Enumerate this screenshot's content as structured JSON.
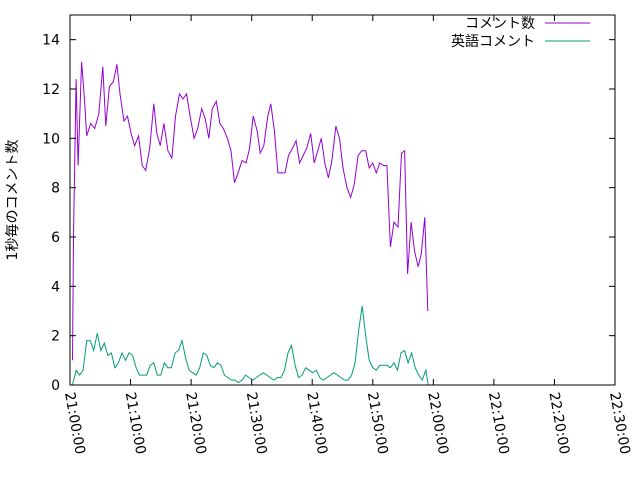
{
  "chart_data": {
    "type": "line",
    "title": "",
    "xlabel": "",
    "ylabel": "1秒毎のコメント数",
    "xlim": [
      "21:00:00",
      "22:30:00"
    ],
    "ylim": [
      0,
      15
    ],
    "grid": false,
    "legend_position": "top-right",
    "x_tick_labels": [
      "21:00:00",
      "21:10:00",
      "21:20:00",
      "21:30:00",
      "21:40:00",
      "21:50:00",
      "22:00:00",
      "22:10:00",
      "22:20:00",
      "22:30:00"
    ],
    "y_tick_labels": [
      "0",
      "2",
      "4",
      "6",
      "8",
      "10",
      "12",
      "14"
    ],
    "series": [
      {
        "name": "コメント数",
        "color": "#9400d3",
        "points": [
          [
            "21:00:25",
            1.0
          ],
          [
            "21:00:35",
            6.0
          ],
          [
            "21:01:00",
            12.4
          ],
          [
            "21:01:20",
            8.9
          ],
          [
            "21:01:55",
            13.1
          ],
          [
            "21:02:20",
            11.8
          ],
          [
            "21:02:45",
            10.1
          ],
          [
            "21:03:25",
            10.6
          ],
          [
            "21:04:05",
            10.4
          ],
          [
            "21:04:45",
            11.0
          ],
          [
            "21:05:25",
            12.9
          ],
          [
            "21:05:55",
            10.5
          ],
          [
            "21:06:30",
            12.1
          ],
          [
            "21:07:10",
            12.3
          ],
          [
            "21:07:45",
            13.0
          ],
          [
            "21:08:15",
            11.8
          ],
          [
            "21:08:55",
            10.7
          ],
          [
            "21:09:30",
            10.9
          ],
          [
            "21:10:05",
            10.2
          ],
          [
            "21:10:40",
            9.7
          ],
          [
            "21:11:20",
            10.1
          ],
          [
            "21:11:55",
            8.9
          ],
          [
            "21:12:30",
            8.7
          ],
          [
            "21:13:10",
            9.6
          ],
          [
            "21:13:50",
            11.4
          ],
          [
            "21:14:20",
            10.2
          ],
          [
            "21:14:55",
            9.7
          ],
          [
            "21:15:30",
            10.6
          ],
          [
            "21:16:10",
            9.5
          ],
          [
            "21:16:50",
            9.2
          ],
          [
            "21:17:25",
            10.9
          ],
          [
            "21:18:05",
            11.8
          ],
          [
            "21:18:40",
            11.6
          ],
          [
            "21:19:15",
            11.8
          ],
          [
            "21:19:50",
            10.9
          ],
          [
            "21:20:30",
            10.0
          ],
          [
            "21:21:05",
            10.4
          ],
          [
            "21:21:45",
            11.2
          ],
          [
            "21:22:20",
            10.8
          ],
          [
            "21:22:55",
            10.0
          ],
          [
            "21:23:30",
            11.2
          ],
          [
            "21:24:10",
            11.5
          ],
          [
            "21:24:45",
            10.6
          ],
          [
            "21:25:20",
            10.4
          ],
          [
            "21:26:00",
            10.0
          ],
          [
            "21:26:35",
            9.5
          ],
          [
            "21:27:10",
            8.2
          ],
          [
            "21:27:45",
            8.6
          ],
          [
            "21:28:25",
            9.1
          ],
          [
            "21:29:05",
            9.0
          ],
          [
            "21:29:40",
            9.6
          ],
          [
            "21:30:15",
            10.9
          ],
          [
            "21:30:55",
            10.3
          ],
          [
            "21:31:25",
            9.4
          ],
          [
            "21:32:00",
            9.7
          ],
          [
            "21:32:40",
            10.9
          ],
          [
            "21:33:10",
            11.4
          ],
          [
            "21:33:45",
            10.3
          ],
          [
            "21:34:20",
            8.6
          ],
          [
            "21:34:55",
            8.6
          ],
          [
            "21:35:30",
            8.6
          ],
          [
            "21:36:05",
            9.3
          ],
          [
            "21:36:45",
            9.6
          ],
          [
            "21:37:20",
            9.9
          ],
          [
            "21:37:55",
            9.0
          ],
          [
            "21:38:30",
            9.3
          ],
          [
            "21:39:05",
            9.6
          ],
          [
            "21:39:45",
            10.2
          ],
          [
            "21:40:20",
            9.0
          ],
          [
            "21:40:55",
            9.5
          ],
          [
            "21:41:30",
            10.0
          ],
          [
            "21:42:05",
            9.0
          ],
          [
            "21:42:40",
            8.4
          ],
          [
            "21:43:15",
            9.1
          ],
          [
            "21:43:55",
            10.5
          ],
          [
            "21:44:30",
            10.0
          ],
          [
            "21:45:05",
            8.8
          ],
          [
            "21:45:45",
            8.0
          ],
          [
            "21:46:20",
            7.6
          ],
          [
            "21:46:55",
            8.1
          ],
          [
            "21:47:35",
            9.3
          ],
          [
            "21:48:10",
            9.5
          ],
          [
            "21:48:50",
            9.5
          ],
          [
            "21:49:25",
            8.8
          ],
          [
            "21:50:00",
            9.0
          ],
          [
            "21:50:35",
            8.6
          ],
          [
            "21:51:10",
            9.0
          ],
          [
            "21:51:45",
            8.9
          ],
          [
            "21:52:20",
            8.9
          ],
          [
            "21:52:55",
            5.6
          ],
          [
            "21:53:30",
            6.6
          ],
          [
            "21:54:10",
            6.4
          ],
          [
            "21:54:45",
            9.4
          ],
          [
            "21:55:15",
            9.5
          ],
          [
            "21:55:45",
            4.5
          ],
          [
            "21:56:20",
            6.6
          ],
          [
            "21:56:55",
            5.4
          ],
          [
            "21:57:30",
            4.8
          ],
          [
            "21:58:00",
            5.3
          ],
          [
            "21:58:35",
            6.8
          ],
          [
            "21:59:05",
            3.0
          ]
        ]
      },
      {
        "name": "英語コメント",
        "color": "#009e73",
        "points": [
          [
            "21:00:25",
            0.0
          ],
          [
            "21:01:00",
            0.6
          ],
          [
            "21:01:35",
            0.4
          ],
          [
            "21:02:10",
            0.6
          ],
          [
            "21:02:45",
            1.8
          ],
          [
            "21:03:20",
            1.8
          ],
          [
            "21:03:55",
            1.4
          ],
          [
            "21:04:30",
            2.1
          ],
          [
            "21:05:05",
            1.4
          ],
          [
            "21:05:40",
            1.7
          ],
          [
            "21:06:15",
            1.2
          ],
          [
            "21:06:50",
            1.3
          ],
          [
            "21:07:25",
            0.7
          ],
          [
            "21:08:00",
            0.9
          ],
          [
            "21:08:35",
            1.3
          ],
          [
            "21:09:10",
            1.0
          ],
          [
            "21:09:45",
            1.3
          ],
          [
            "21:10:20",
            1.2
          ],
          [
            "21:10:55",
            0.7
          ],
          [
            "21:11:30",
            0.4
          ],
          [
            "21:12:05",
            0.4
          ],
          [
            "21:12:40",
            0.4
          ],
          [
            "21:13:15",
            0.8
          ],
          [
            "21:13:50",
            0.9
          ],
          [
            "21:14:25",
            0.4
          ],
          [
            "21:15:00",
            0.4
          ],
          [
            "21:15:35",
            0.9
          ],
          [
            "21:16:10",
            0.7
          ],
          [
            "21:16:45",
            0.7
          ],
          [
            "21:17:20",
            1.3
          ],
          [
            "21:17:55",
            1.4
          ],
          [
            "21:18:30",
            1.8
          ],
          [
            "21:19:05",
            1.1
          ],
          [
            "21:19:40",
            0.6
          ],
          [
            "21:20:15",
            0.5
          ],
          [
            "21:20:50",
            0.4
          ],
          [
            "21:21:25",
            0.7
          ],
          [
            "21:22:00",
            1.3
          ],
          [
            "21:22:35",
            1.2
          ],
          [
            "21:23:10",
            0.8
          ],
          [
            "21:23:45",
            0.7
          ],
          [
            "21:24:20",
            0.9
          ],
          [
            "21:24:55",
            0.8
          ],
          [
            "21:25:30",
            0.4
          ],
          [
            "21:26:05",
            0.3
          ],
          [
            "21:26:40",
            0.2
          ],
          [
            "21:27:15",
            0.2
          ],
          [
            "21:27:50",
            0.1
          ],
          [
            "21:28:25",
            0.2
          ],
          [
            "21:29:00",
            0.4
          ],
          [
            "21:29:35",
            0.3
          ],
          [
            "21:30:10",
            0.2
          ],
          [
            "21:30:45",
            0.3
          ],
          [
            "21:31:20",
            0.4
          ],
          [
            "21:31:55",
            0.5
          ],
          [
            "21:32:30",
            0.4
          ],
          [
            "21:33:05",
            0.3
          ],
          [
            "21:33:40",
            0.2
          ],
          [
            "21:34:15",
            0.3
          ],
          [
            "21:34:50",
            0.3
          ],
          [
            "21:35:25",
            0.6
          ],
          [
            "21:36:00",
            1.3
          ],
          [
            "21:36:35",
            1.6
          ],
          [
            "21:37:10",
            0.8
          ],
          [
            "21:37:45",
            0.3
          ],
          [
            "21:38:20",
            0.4
          ],
          [
            "21:38:55",
            0.7
          ],
          [
            "21:39:30",
            0.6
          ],
          [
            "21:40:05",
            0.5
          ],
          [
            "21:40:40",
            0.6
          ],
          [
            "21:41:15",
            0.3
          ],
          [
            "21:41:50",
            0.2
          ],
          [
            "21:42:25",
            0.3
          ],
          [
            "21:43:00",
            0.4
          ],
          [
            "21:43:35",
            0.5
          ],
          [
            "21:44:10",
            0.4
          ],
          [
            "21:44:45",
            0.3
          ],
          [
            "21:45:20",
            0.2
          ],
          [
            "21:45:55",
            0.2
          ],
          [
            "21:46:30",
            0.4
          ],
          [
            "21:47:05",
            0.9
          ],
          [
            "21:47:40",
            2.2
          ],
          [
            "21:48:15",
            3.2
          ],
          [
            "21:48:50",
            2.0
          ],
          [
            "21:49:25",
            1.0
          ],
          [
            "21:50:00",
            0.7
          ],
          [
            "21:50:35",
            0.6
          ],
          [
            "21:51:10",
            0.8
          ],
          [
            "21:51:45",
            0.8
          ],
          [
            "21:52:20",
            0.8
          ],
          [
            "21:52:55",
            0.7
          ],
          [
            "21:53:30",
            0.9
          ],
          [
            "21:54:05",
            0.6
          ],
          [
            "21:54:40",
            1.3
          ],
          [
            "21:55:15",
            1.4
          ],
          [
            "21:55:50",
            0.9
          ],
          [
            "21:56:25",
            1.3
          ],
          [
            "21:57:00",
            0.7
          ],
          [
            "21:57:35",
            0.4
          ],
          [
            "21:58:10",
            0.2
          ],
          [
            "21:58:45",
            0.6
          ],
          [
            "21:59:10",
            0.0
          ]
        ]
      }
    ]
  }
}
